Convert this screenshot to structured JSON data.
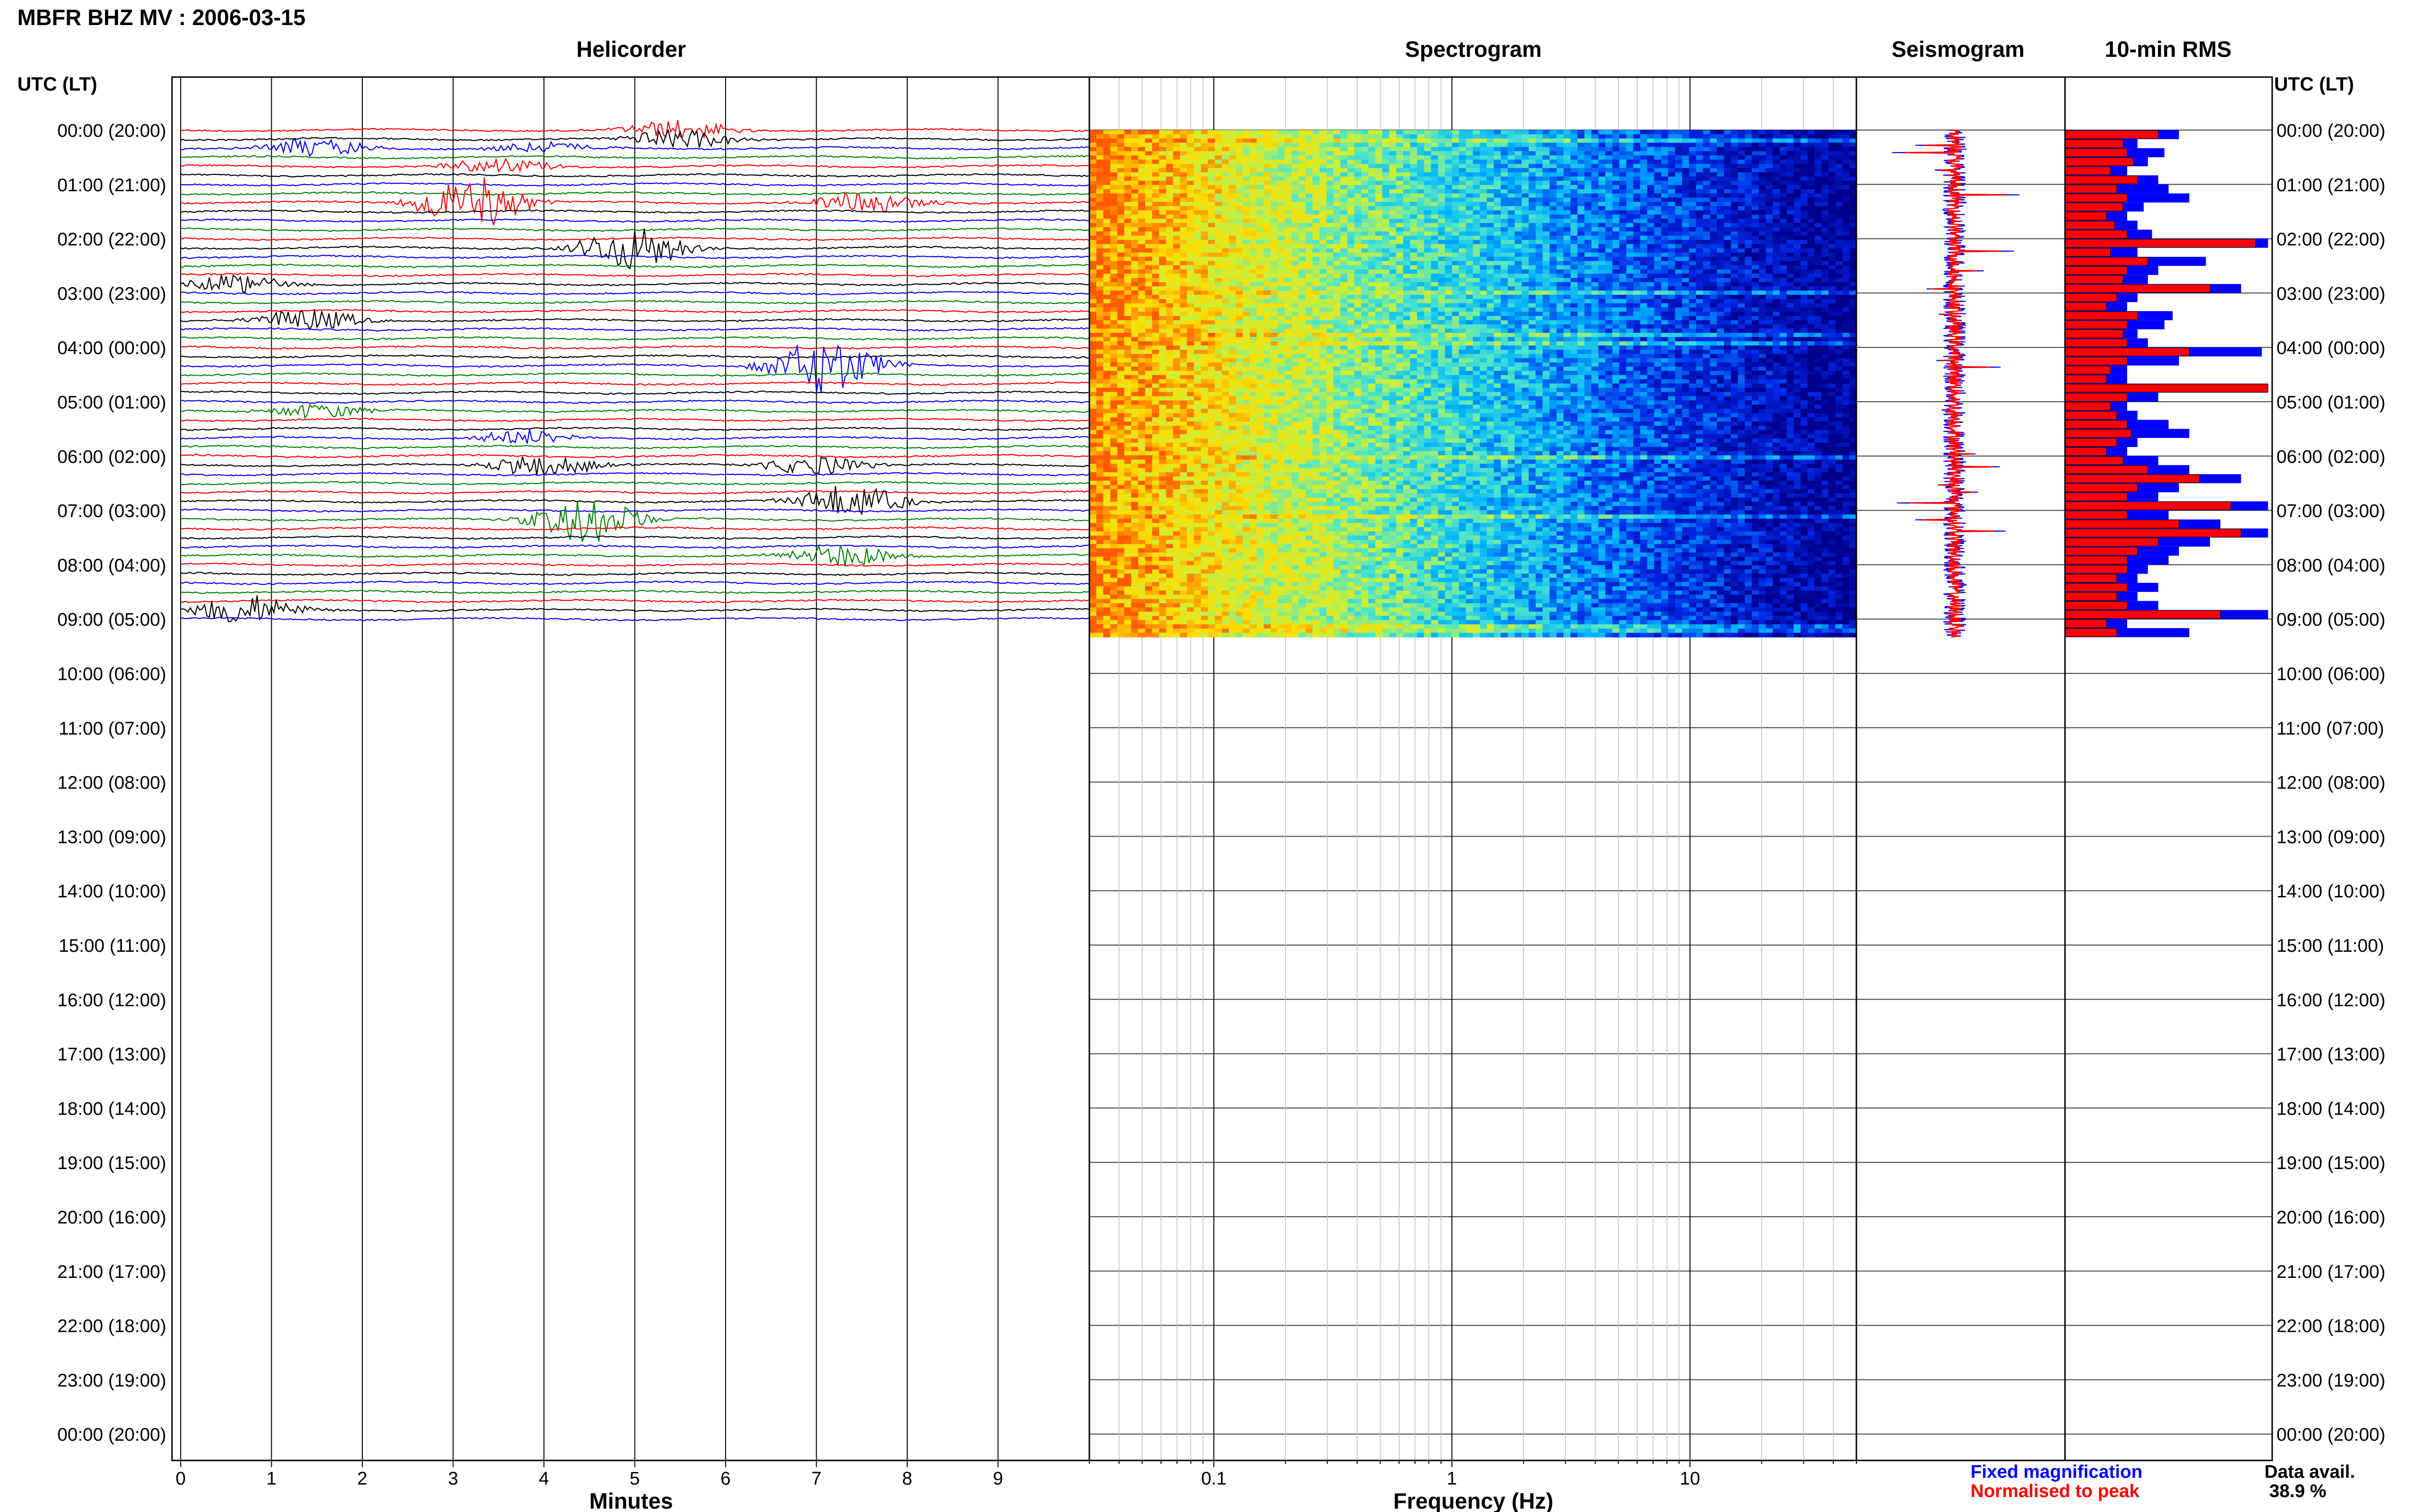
{
  "header": {
    "title": "MBFR BHZ MV : 2006-03-15"
  },
  "panels": {
    "helicorder": "Helicorder",
    "spectrogram": "Spectrogram",
    "seismogram": "Seismogram",
    "rms": "10-min RMS"
  },
  "axes": {
    "time_header": "UTC (LT)",
    "time_labels": [
      "00:00 (20:00)",
      "01:00 (21:00)",
      "02:00 (22:00)",
      "03:00 (23:00)",
      "04:00 (00:00)",
      "05:00 (01:00)",
      "06:00 (02:00)",
      "07:00 (03:00)",
      "08:00 (04:00)",
      "09:00 (05:00)",
      "10:00 (06:00)",
      "11:00 (07:00)",
      "12:00 (08:00)",
      "13:00 (09:00)",
      "14:00 (10:00)",
      "15:00 (11:00)",
      "16:00 (12:00)",
      "17:00 (13:00)",
      "18:00 (14:00)",
      "19:00 (15:00)",
      "20:00 (16:00)",
      "21:00 (17:00)",
      "22:00 (18:00)",
      "23:00 (19:00)",
      "00:00 (20:00)"
    ],
    "minutes_ticks": [
      "0",
      "1",
      "2",
      "3",
      "4",
      "5",
      "6",
      "7",
      "8",
      "9"
    ],
    "minutes_label": "Minutes",
    "freq_ticks": [
      "0.1",
      "1",
      "10"
    ],
    "freq_label": "Frequency (Hz)"
  },
  "legend": {
    "fixed": "Fixed magnification",
    "normalised": "Normalised to peak",
    "fixed_color": "#0000ff",
    "normalised_color": "#ff0000",
    "avail_label": "Data avail.",
    "avail_value": "38.9 %"
  },
  "chart_data": {
    "type": "heatmap",
    "station": "MBFR BHZ MV",
    "date": "2006-03-15",
    "data_hours_utc": [
      0,
      9.33
    ],
    "hours_range": [
      0,
      24
    ],
    "minutes_range": [
      0,
      10
    ],
    "freq_range_hz": [
      0.03,
      50
    ],
    "freq_scale": "log",
    "trace_colors": [
      "#ff0000",
      "#000000",
      "#0000ff",
      "#008000"
    ],
    "events": [
      {
        "hour": 0.08,
        "minute": 5.5,
        "color": "#000000",
        "amp": 0.5
      },
      {
        "hour": 0.3,
        "minute": 4.0,
        "color": "#008000",
        "amp": 0.3
      },
      {
        "hour": 0.35,
        "minute": 1.5,
        "color": "#000000",
        "amp": 0.5
      },
      {
        "hour": 0.65,
        "minute": 3.5,
        "color": "#0000ff",
        "amp": 0.4
      },
      {
        "hour": 1.3,
        "minute": 3.2,
        "color": "#008000",
        "amp": 1.4
      },
      {
        "hour": 1.4,
        "minute": 7.6,
        "color": "#ff0000",
        "amp": 0.6
      },
      {
        "hour": 2.2,
        "minute": 5.0,
        "color": "#000000",
        "amp": 1.2
      },
      {
        "hour": 2.9,
        "minute": 0.6,
        "color": "#000000",
        "amp": 0.5
      },
      {
        "hour": 3.5,
        "minute": 1.4,
        "color": "#0000ff",
        "amp": 0.6
      },
      {
        "hour": 4.4,
        "minute": 7.1,
        "color": "#008000",
        "amp": 1.5
      },
      {
        "hour": 5.2,
        "minute": 1.5,
        "color": "#008000",
        "amp": 0.4
      },
      {
        "hour": 5.6,
        "minute": 3.8,
        "color": "#000000",
        "amp": 0.4
      },
      {
        "hour": 6.1,
        "minute": 4.0,
        "color": "#ff0000",
        "amp": 0.6
      },
      {
        "hour": 6.2,
        "minute": 7.0,
        "color": "#ff0000",
        "amp": 0.5
      },
      {
        "hour": 6.8,
        "minute": 7.4,
        "color": "#ff0000",
        "amp": 0.9
      },
      {
        "hour": 7.2,
        "minute": 4.5,
        "color": "#000000",
        "amp": 1.2
      },
      {
        "hour": 7.9,
        "minute": 7.3,
        "color": "#000000",
        "amp": 0.6
      },
      {
        "hour": 8.9,
        "minute": 0.7,
        "color": "#008000",
        "amp": 0.8
      }
    ],
    "rms_10min": [
      {
        "fixed": 0.55,
        "norm": 0.45
      },
      {
        "fixed": 0.35,
        "norm": 0.28
      },
      {
        "fixed": 0.48,
        "norm": 0.3
      },
      {
        "fixed": 0.4,
        "norm": 0.33
      },
      {
        "fixed": 0.3,
        "norm": 0.22
      },
      {
        "fixed": 0.45,
        "norm": 0.35
      },
      {
        "fixed": 0.5,
        "norm": 0.25
      },
      {
        "fixed": 0.6,
        "norm": 0.3
      },
      {
        "fixed": 0.38,
        "norm": 0.28
      },
      {
        "fixed": 0.3,
        "norm": 0.2
      },
      {
        "fixed": 0.35,
        "norm": 0.24
      },
      {
        "fixed": 0.42,
        "norm": 0.3
      },
      {
        "fixed": 0.98,
        "norm": 0.92
      },
      {
        "fixed": 0.35,
        "norm": 0.22
      },
      {
        "fixed": 0.68,
        "norm": 0.4
      },
      {
        "fixed": 0.45,
        "norm": 0.3
      },
      {
        "fixed": 0.4,
        "norm": 0.28
      },
      {
        "fixed": 0.85,
        "norm": 0.7
      },
      {
        "fixed": 0.35,
        "norm": 0.25
      },
      {
        "fixed": 0.3,
        "norm": 0.2
      },
      {
        "fixed": 0.52,
        "norm": 0.35
      },
      {
        "fixed": 0.48,
        "norm": 0.3
      },
      {
        "fixed": 0.35,
        "norm": 0.28
      },
      {
        "fixed": 0.4,
        "norm": 0.3
      },
      {
        "fixed": 0.95,
        "norm": 0.6
      },
      {
        "fixed": 0.55,
        "norm": 0.3
      },
      {
        "fixed": 0.3,
        "norm": 0.22
      },
      {
        "fixed": 0.3,
        "norm": 0.2
      },
      {
        "fixed": 0.98,
        "norm": 0.98
      },
      {
        "fixed": 0.45,
        "norm": 0.3
      },
      {
        "fixed": 0.3,
        "norm": 0.22
      },
      {
        "fixed": 0.35,
        "norm": 0.25
      },
      {
        "fixed": 0.5,
        "norm": 0.3
      },
      {
        "fixed": 0.6,
        "norm": 0.32
      },
      {
        "fixed": 0.35,
        "norm": 0.25
      },
      {
        "fixed": 0.3,
        "norm": 0.2
      },
      {
        "fixed": 0.45,
        "norm": 0.28
      },
      {
        "fixed": 0.6,
        "norm": 0.4
      },
      {
        "fixed": 0.85,
        "norm": 0.65
      },
      {
        "fixed": 0.55,
        "norm": 0.35
      },
      {
        "fixed": 0.45,
        "norm": 0.3
      },
      {
        "fixed": 0.98,
        "norm": 0.8
      },
      {
        "fixed": 0.5,
        "norm": 0.3
      },
      {
        "fixed": 0.75,
        "norm": 0.55
      },
      {
        "fixed": 0.98,
        "norm": 0.85
      },
      {
        "fixed": 0.7,
        "norm": 0.45
      },
      {
        "fixed": 0.55,
        "norm": 0.35
      },
      {
        "fixed": 0.5,
        "norm": 0.3
      },
      {
        "fixed": 0.4,
        "norm": 0.3
      },
      {
        "fixed": 0.35,
        "norm": 0.25
      },
      {
        "fixed": 0.45,
        "norm": 0.3
      },
      {
        "fixed": 0.35,
        "norm": 0.25
      },
      {
        "fixed": 0.45,
        "norm": 0.3
      },
      {
        "fixed": 0.98,
        "norm": 0.75
      },
      {
        "fixed": 0.3,
        "norm": 0.2
      },
      {
        "fixed": 0.6,
        "norm": 0.25
      }
    ]
  }
}
